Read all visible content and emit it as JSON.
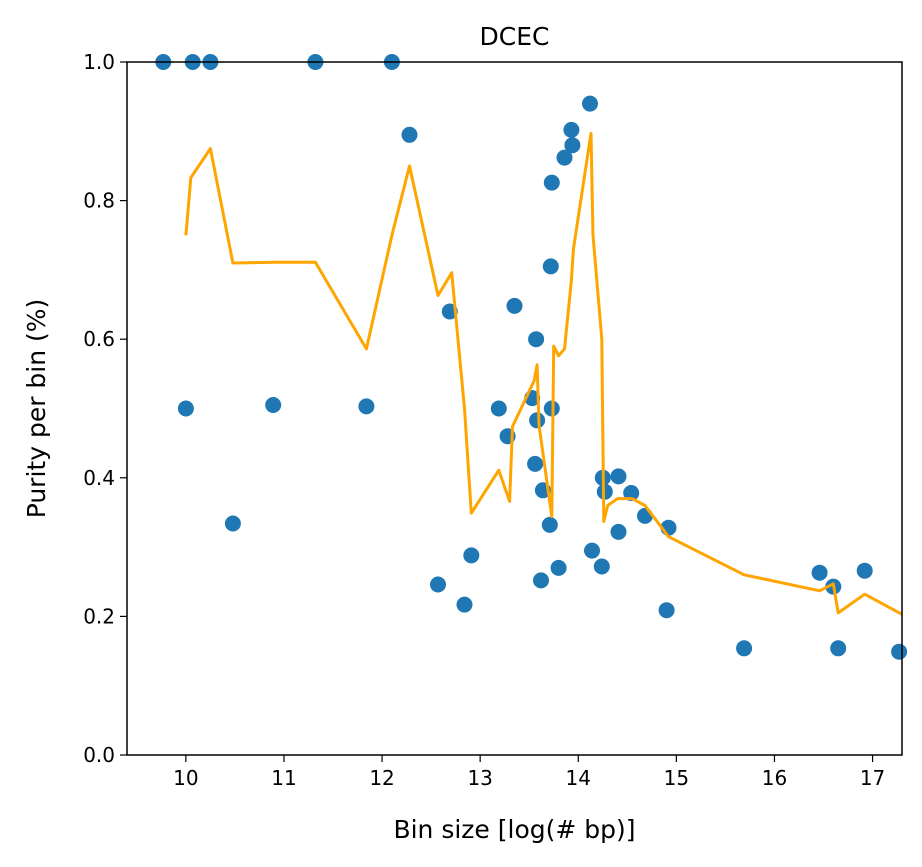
{
  "chart_data": {
    "type": "scatter",
    "title": "DCEC",
    "xlabel": "Bin size [log(# bp)]",
    "ylabel": "Purity per bin (%)",
    "xlim": [
      9.4,
      17.3
    ],
    "ylim": [
      0.0,
      1.0
    ],
    "xticks": [
      10,
      11,
      12,
      13,
      14,
      15,
      16,
      17
    ],
    "yticks": [
      0.0,
      0.2,
      0.4,
      0.6,
      0.8,
      1.0
    ],
    "xtick_labels": [
      "10",
      "11",
      "12",
      "13",
      "14",
      "15",
      "16",
      "17"
    ],
    "ytick_labels": [
      "0.0",
      "0.2",
      "0.4",
      "0.6",
      "0.8",
      "1.0"
    ],
    "grid": false,
    "series": [
      {
        "type": "scatter",
        "color": "#1f77b4",
        "x": [
          9.77,
          10.07,
          10.25,
          11.32,
          12.1,
          12.28,
          10.0,
          10.89,
          11.84,
          10.48,
          12.69,
          12.57,
          12.91,
          12.84,
          13.35,
          13.19,
          13.28,
          13.53,
          13.57,
          13.58,
          13.56,
          13.64,
          13.73,
          13.72,
          13.73,
          13.71,
          13.62,
          13.8,
          13.86,
          13.94,
          13.93,
          14.12,
          14.14,
          14.24,
          14.25,
          14.27,
          14.41,
          14.41,
          14.54,
          14.68,
          14.92,
          14.9,
          15.69,
          16.46,
          16.6,
          16.65,
          16.92,
          17.27
        ],
        "y": [
          1.0,
          1.0,
          1.0,
          1.0,
          1.0,
          0.895,
          0.5,
          0.505,
          0.503,
          0.334,
          0.64,
          0.246,
          0.288,
          0.217,
          0.648,
          0.5,
          0.46,
          0.515,
          0.6,
          0.483,
          0.42,
          0.382,
          0.826,
          0.705,
          0.5,
          0.332,
          0.252,
          0.27,
          0.862,
          0.88,
          0.902,
          0.94,
          0.295,
          0.272,
          0.4,
          0.38,
          0.402,
          0.322,
          0.378,
          0.345,
          0.328,
          0.209,
          0.154,
          0.263,
          0.243,
          0.154,
          0.266,
          0.149
        ]
      },
      {
        "type": "line",
        "color": "#ffa500",
        "x": [
          10.0,
          10.05,
          10.25,
          10.48,
          10.9,
          11.32,
          11.84,
          12.1,
          12.28,
          12.57,
          12.71,
          12.84,
          12.91,
          13.19,
          13.3,
          13.33,
          13.55,
          13.58,
          13.6,
          13.73,
          13.75,
          13.8,
          13.86,
          13.93,
          13.95,
          14.13,
          14.15,
          14.24,
          14.26,
          14.3,
          14.4,
          14.55,
          14.68,
          14.92,
          15.69,
          16.46,
          16.6,
          16.65,
          16.92,
          17.3
        ],
        "y": [
          0.75,
          0.833,
          0.875,
          0.71,
          0.711,
          0.711,
          0.586,
          0.75,
          0.85,
          0.663,
          0.696,
          0.5,
          0.349,
          0.411,
          0.366,
          0.474,
          0.54,
          0.563,
          0.476,
          0.344,
          0.59,
          0.576,
          0.586,
          0.685,
          0.73,
          0.897,
          0.75,
          0.6,
          0.337,
          0.36,
          0.37,
          0.37,
          0.36,
          0.315,
          0.26,
          0.237,
          0.247,
          0.205,
          0.232,
          0.203
        ]
      }
    ]
  }
}
